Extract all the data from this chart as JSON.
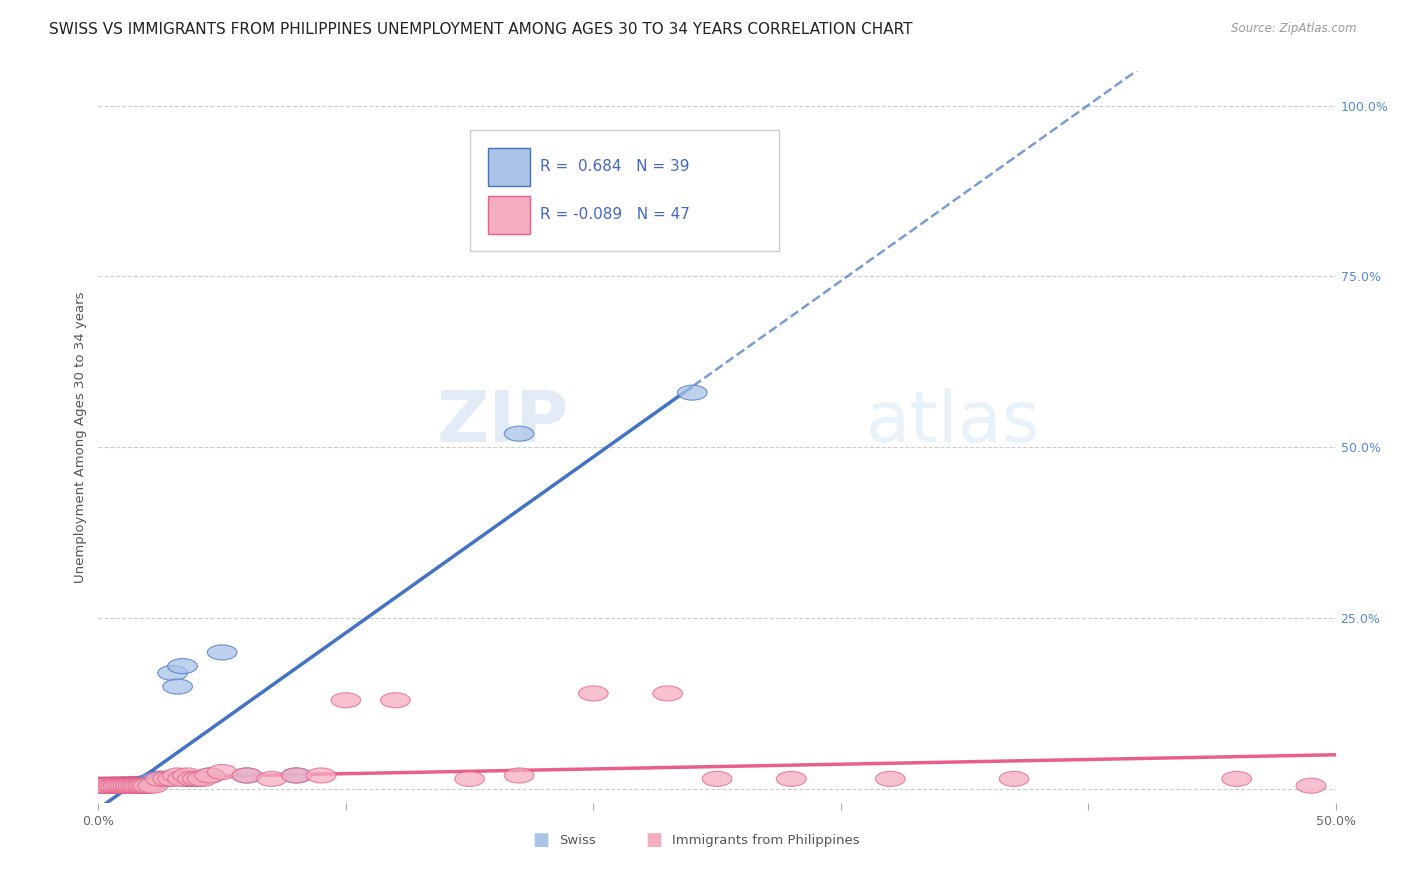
{
  "title": "SWISS VS IMMIGRANTS FROM PHILIPPINES UNEMPLOYMENT AMONG AGES 30 TO 34 YEARS CORRELATION CHART",
  "source": "Source: ZipAtlas.com",
  "ylabel": "Unemployment Among Ages 30 to 34 years",
  "xlim": [
    0.0,
    0.5
  ],
  "ylim": [
    -0.02,
    1.05
  ],
  "legend_swiss_r": "0.684",
  "legend_swiss_n": "39",
  "legend_phil_r": "-0.089",
  "legend_phil_n": "47",
  "swiss_color": "#aac4e8",
  "phil_color": "#f5adc0",
  "swiss_line_color": "#4472c4",
  "phil_line_color": "#e8608a",
  "grid_color": "#c8c8c8",
  "background_color": "#ffffff",
  "swiss_x": [
    0.0,
    0.002,
    0.003,
    0.005,
    0.006,
    0.007,
    0.008,
    0.009,
    0.01,
    0.011,
    0.012,
    0.013,
    0.014,
    0.015,
    0.016,
    0.017,
    0.018,
    0.019,
    0.02,
    0.021,
    0.022,
    0.023,
    0.024,
    0.025,
    0.026,
    0.027,
    0.028,
    0.03,
    0.032,
    0.034,
    0.036,
    0.038,
    0.04,
    0.045,
    0.05,
    0.06,
    0.08,
    0.17,
    0.24
  ],
  "swiss_y": [
    0.005,
    0.005,
    0.005,
    0.005,
    0.005,
    0.005,
    0.005,
    0.005,
    0.005,
    0.005,
    0.005,
    0.005,
    0.005,
    0.005,
    0.005,
    0.005,
    0.005,
    0.005,
    0.01,
    0.01,
    0.01,
    0.015,
    0.015,
    0.015,
    0.015,
    0.015,
    0.015,
    0.17,
    0.15,
    0.18,
    0.015,
    0.015,
    0.015,
    0.02,
    0.2,
    0.02,
    0.02,
    0.52,
    0.58
  ],
  "phil_x": [
    0.0,
    0.002,
    0.003,
    0.005,
    0.006,
    0.007,
    0.008,
    0.009,
    0.01,
    0.011,
    0.012,
    0.013,
    0.014,
    0.015,
    0.016,
    0.017,
    0.018,
    0.019,
    0.02,
    0.022,
    0.025,
    0.028,
    0.03,
    0.032,
    0.034,
    0.036,
    0.038,
    0.04,
    0.042,
    0.045,
    0.05,
    0.06,
    0.07,
    0.08,
    0.09,
    0.1,
    0.12,
    0.15,
    0.17,
    0.2,
    0.23,
    0.25,
    0.28,
    0.32,
    0.37,
    0.46,
    0.49
  ],
  "phil_y": [
    0.005,
    0.005,
    0.005,
    0.005,
    0.005,
    0.005,
    0.005,
    0.005,
    0.005,
    0.005,
    0.005,
    0.005,
    0.005,
    0.005,
    0.005,
    0.005,
    0.005,
    0.005,
    0.005,
    0.005,
    0.015,
    0.015,
    0.015,
    0.02,
    0.015,
    0.02,
    0.015,
    0.015,
    0.015,
    0.02,
    0.025,
    0.02,
    0.015,
    0.02,
    0.02,
    0.13,
    0.13,
    0.015,
    0.02,
    0.14,
    0.14,
    0.015,
    0.015,
    0.015,
    0.015,
    0.015,
    0.005
  ],
  "watermark_zip": "ZIP",
  "watermark_atlas": "atlas",
  "title_fontsize": 11,
  "axis_label_fontsize": 9.5,
  "tick_fontsize": 9,
  "legend_fontsize": 11
}
